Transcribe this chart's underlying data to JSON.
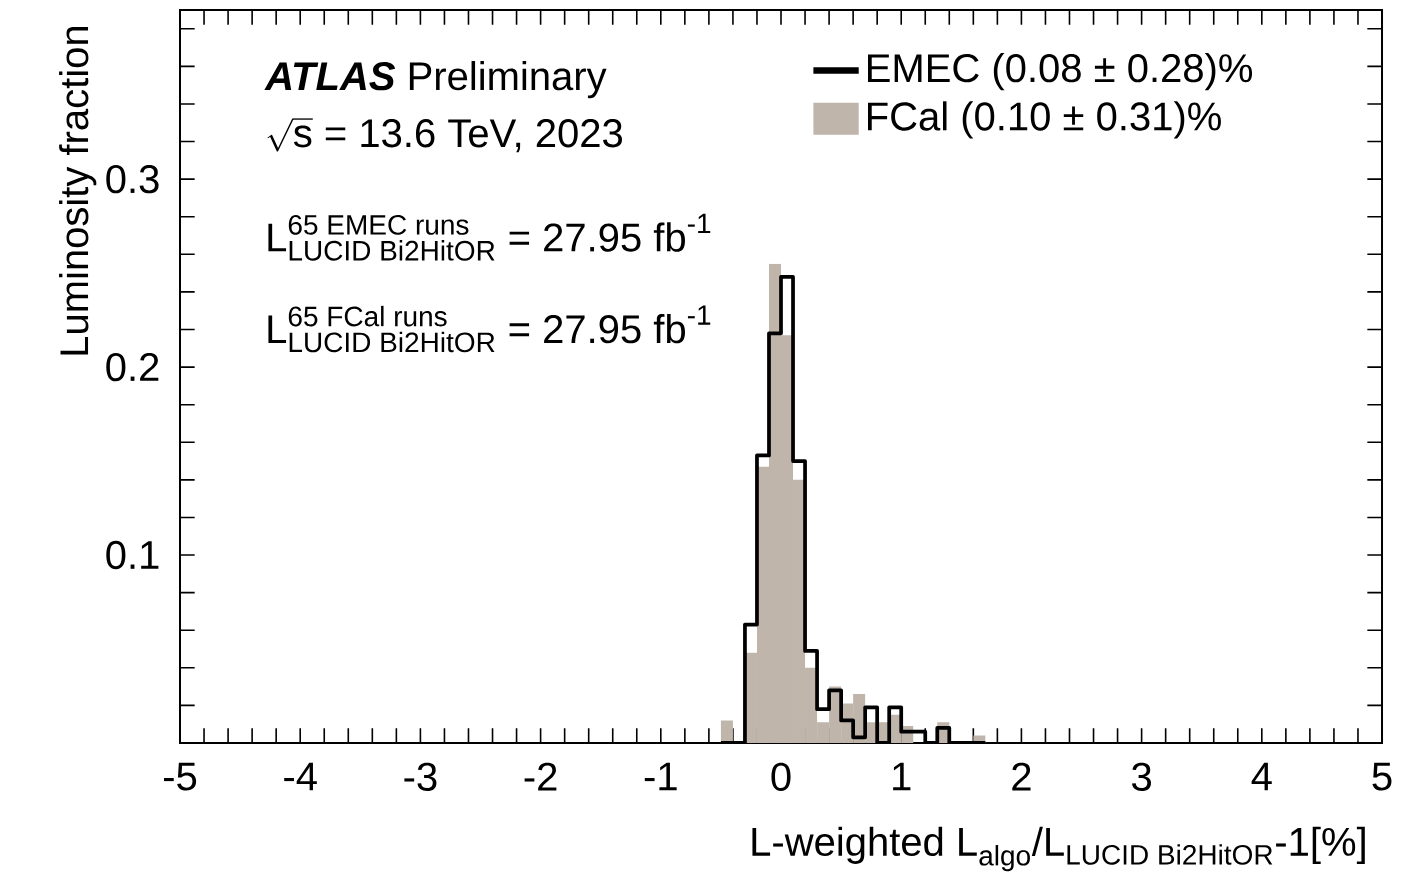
{
  "chart_data": {
    "type": "histogram",
    "ylabel": "Luminosity fraction",
    "xlabel": "\\text{L-weighted L}_{\\text{algo}}\\text{/L}_{\\text{LUCID Bi2HitOR}}\\text{-1[\\%]}",
    "annotations": [
      "\\text{\\textbf{\\textit{ATLAS}} Preliminary}",
      "\\sqrt{\\text{s}}\\text{ = 13.6 TeV, 2023}",
      "\\text{L}^{\\text{65 EMEC runs}}_{\\text{LUCID Bi2HitOR}}\\text{ = 27.95 fb}^{\\text{-1}}",
      "\\text{L}^{\\text{65 FCal runs}}_{\\text{LUCID Bi2HitOR}}\\text{ = 27.95 fb}^{\\text{-1}}"
    ],
    "bins": [
      -0.5,
      -0.4,
      -0.3,
      -0.2,
      -0.1,
      0,
      0.1,
      0.2,
      0.3,
      0.4,
      0.5,
      0.6,
      0.7,
      0.8,
      0.9,
      1.0,
      1.1,
      1.2,
      1.3,
      1.4,
      1.5,
      1.6,
      1.7
    ],
    "series": [
      {
        "name": "FCal (0.10 ± 0.31)%",
        "color": "#bfb5aa",
        "values": [
          0.012,
          0,
          0.048,
          0.147,
          0.255,
          0.217,
          0.14,
          0.04,
          0.011,
          0.03,
          0.021,
          0.026,
          0.011,
          0.011,
          0.015,
          0.009,
          0,
          0,
          0.011,
          0,
          0,
          0.004
        ]
      },
      {
        "name": "EMEC (0.08 ± 0.28)%",
        "color": "#000000",
        "line_style": "solid",
        "values": [
          0,
          0,
          0.063,
          0.153,
          0.218,
          0.248,
          0.15,
          0.049,
          0.018,
          0.028,
          0.012,
          0.003,
          0.019,
          0,
          0.019,
          0.006,
          0.006,
          0,
          0.008,
          0,
          0,
          0
        ]
      }
    ],
    "xlim": [
      -5,
      5
    ],
    "ylim": [
      0,
      0.39
    ],
    "xticks": [
      -5,
      {
        "value": -4.8,
        "label": null
      },
      {
        "value": -4.6,
        "label": null
      },
      {
        "value": -4.4,
        "label": null
      },
      {
        "value": -4.2,
        "label": null
      },
      -4,
      {
        "value": -3.8,
        "label": null
      },
      {
        "value": -3.6,
        "label": null
      },
      {
        "value": -3.4,
        "label": null
      },
      {
        "value": -3.2,
        "label": null
      },
      -3,
      {
        "value": -2.8,
        "label": null
      },
      {
        "value": -2.6,
        "label": null
      },
      {
        "value": -2.4,
        "label": null
      },
      {
        "value": -2.2,
        "label": null
      },
      -2,
      {
        "value": -1.8,
        "label": null
      },
      {
        "value": -1.6,
        "label": null
      },
      {
        "value": -1.4,
        "label": null
      },
      {
        "value": -1.2,
        "label": null
      },
      -1,
      {
        "value": -0.8,
        "label": null
      },
      {
        "value": -0.6,
        "label": null
      },
      {
        "value": -0.4,
        "label": null
      },
      {
        "value": -0.2,
        "label": null
      },
      0,
      {
        "value": 0.2,
        "label": null
      },
      {
        "value": 0.4,
        "label": null
      },
      {
        "value": 0.6,
        "label": null
      },
      {
        "value": 0.8,
        "label": null
      },
      1,
      {
        "value": 1.2,
        "label": null
      },
      {
        "value": 1.4,
        "label": null
      },
      {
        "value": 1.6,
        "label": null
      },
      {
        "value": 1.8,
        "label": null
      },
      2,
      {
        "value": 2.2,
        "label": null
      },
      {
        "value": 2.4,
        "label": null
      },
      {
        "value": 2.6,
        "label": null
      },
      {
        "value": 2.8,
        "label": null
      },
      3,
      {
        "value": 3.2,
        "label": null
      },
      {
        "value": 3.4,
        "label": null
      },
      {
        "value": 3.6,
        "label": null
      },
      {
        "value": 3.8,
        "label": null
      },
      4,
      {
        "value": 4.2,
        "label": null
      },
      {
        "value": 4.4,
        "label": null
      },
      {
        "value": 4.6,
        "label": null
      },
      {
        "value": 4.8,
        "label": null
      },
      5
    ],
    "yticks": [
      {
        "value": 0,
        "label": null
      },
      {
        "value": 0.02,
        "label": null
      },
      {
        "value": 0.04,
        "label": null
      },
      {
        "value": 0.06,
        "label": null
      },
      {
        "value": 0.08,
        "label": null
      },
      0.1,
      {
        "value": 0.12,
        "label": null
      },
      {
        "value": 0.14,
        "label": null
      },
      {
        "value": 0.16,
        "label": null
      },
      {
        "value": 0.18,
        "label": null
      },
      0.2,
      {
        "value": 0.22,
        "label": null
      },
      {
        "value": 0.24,
        "label": null
      },
      {
        "value": 0.26,
        "label": null
      },
      {
        "value": 0.28,
        "label": null
      },
      0.3,
      {
        "value": 0.32,
        "label": null
      },
      {
        "value": 0.34,
        "label": null
      },
      {
        "value": 0.36,
        "label": null
      },
      {
        "value": 0.38,
        "label": null
      }
    ],
    "legend": "top right"
  }
}
